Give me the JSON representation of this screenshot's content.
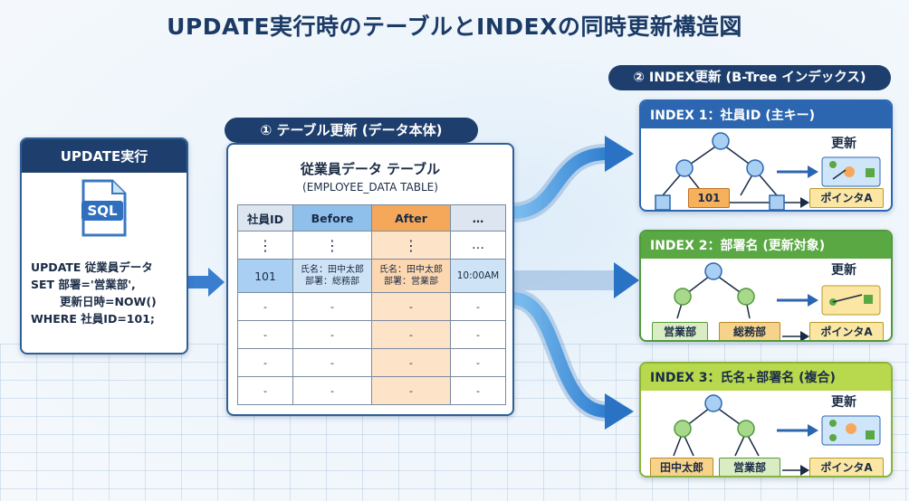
{
  "title": "UPDATE実行時のテーブルとINDEXの同時更新構造図",
  "update_panel": {
    "header": "UPDATE実行",
    "icon_label": "SQL",
    "sql_lines": [
      "UPDATE 従業員データ",
      "SET 部署='営業部',",
      "更新日時=NOW()",
      "WHERE 社員ID=101;"
    ]
  },
  "table_section": {
    "label": "① テーブル更新 (データ本体)",
    "table_title": "従業員データ テーブル",
    "table_subtitle": "(EMPLOYEE_DATA TABLE)",
    "columns": [
      "社員ID",
      "Before",
      "After",
      "…"
    ],
    "dots_row": [
      "⋮",
      "⋮",
      "⋮",
      "…"
    ],
    "updated_row": {
      "id": "101",
      "before_name": "氏名：田中太郎",
      "before_dept": "部署：総務部",
      "after_name": "氏名：田中太郎",
      "after_dept": "部署：営業部",
      "time": "10:00AM"
    },
    "empty_cell": "-"
  },
  "index_section": {
    "label": "② INDEX更新 (B-Tree インデックス)",
    "update_label": "更新",
    "pointer_label": "ポインタA",
    "indexes": [
      {
        "header": "INDEX 1：社員ID (主キー)",
        "keys": [
          "101"
        ]
      },
      {
        "header": "INDEX 2：部署名 (更新対象)",
        "keys": [
          "営業部",
          "総務部"
        ]
      },
      {
        "header": "INDEX 3：氏名+部署名 (複合)",
        "keys": [
          "田中太郎",
          "営業部"
        ]
      }
    ]
  },
  "colors": {
    "navy": "#1e3f6e",
    "blue": "#2c66b0",
    "green": "#5aa844",
    "lime": "#b8d84e",
    "orange": "#f6a85a"
  }
}
